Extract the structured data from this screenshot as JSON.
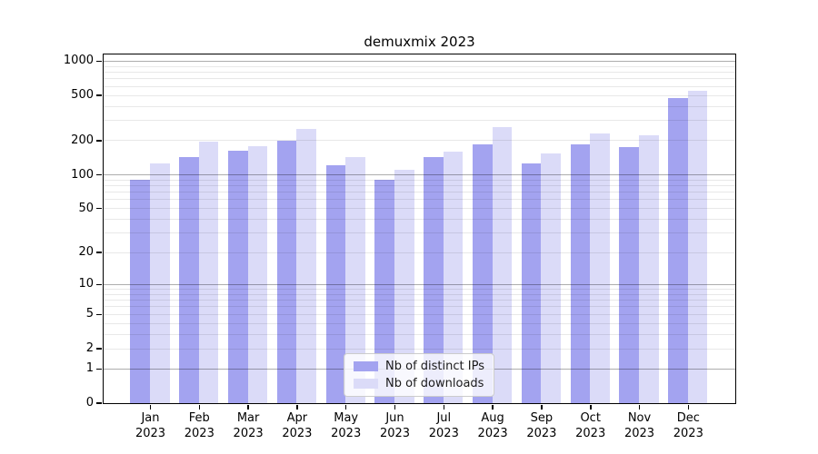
{
  "figure": {
    "title": "demuxmix 2023"
  },
  "chart_data": {
    "type": "bar",
    "title": "demuxmix 2023",
    "categories": [
      "Jan 2023",
      "Feb 2023",
      "Mar 2023",
      "Apr 2023",
      "May 2023",
      "Jun 2023",
      "Jul 2023",
      "Aug 2023",
      "Sep 2023",
      "Oct 2023",
      "Nov 2023",
      "Dec 2023"
    ],
    "series": [
      {
        "name": "Nb of distinct IPs",
        "color": "#a3a3f0",
        "values": [
          90,
          142,
          163,
          198,
          120,
          89,
          143,
          184,
          125,
          184,
          175,
          470
        ]
      },
      {
        "name": "Nb of downloads",
        "color": "#dbdbf8",
        "values": [
          125,
          195,
          178,
          253,
          142,
          110,
          160,
          260,
          154,
          229,
          222,
          550
        ]
      }
    ],
    "y_axis": {
      "scale": "log1p",
      "tick_values": [
        0,
        1,
        2,
        5,
        10,
        20,
        50,
        100,
        200,
        500,
        1000
      ],
      "tick_labels": [
        "0",
        "1",
        "2",
        "5",
        "10",
        "20",
        "50",
        "100",
        "200",
        "500",
        "1000"
      ],
      "ylim": [
        0,
        1147
      ],
      "grid": "both"
    },
    "x_axis": {
      "tick_labels_line2": "2023"
    },
    "legend": {
      "position": "lower center",
      "entries": [
        "Nb of distinct IPs",
        "Nb of downloads"
      ]
    }
  }
}
